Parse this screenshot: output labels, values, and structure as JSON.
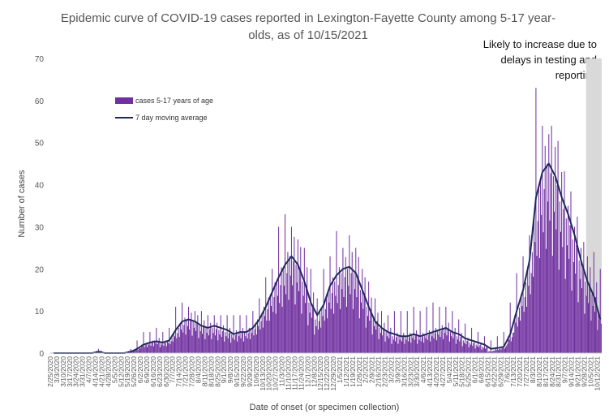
{
  "chart_data": {
    "type": "bar",
    "title": "Epidemic curve of COVID-19 cases reported in Lexington-Fayette County among 5-17 year-olds, as of 10/15/2021",
    "xlabel": "Date of onset (or specimen collection)",
    "ylabel": "Number of cases",
    "ylim": [
      0,
      70
    ],
    "yticks": [
      0,
      10,
      20,
      30,
      40,
      50,
      60,
      70
    ],
    "x_start": "2/25/2020",
    "x_end": "10/15/2021",
    "x_tick_labels": [
      "2/25/2020",
      "3/3/2020",
      "3/10/2020",
      "3/17/2020",
      "3/24/2020",
      "3/31/2020",
      "4/7/2020",
      "4/14/2020",
      "4/21/2020",
      "4/28/2020",
      "5/5/2020",
      "5/12/2020",
      "5/19/2020",
      "5/26/2020",
      "6/2/2020",
      "6/9/2020",
      "6/16/2020",
      "6/23/2020",
      "6/30/2020",
      "7/7/2020",
      "7/14/2020",
      "7/21/2020",
      "7/28/2020",
      "8/4/2020",
      "8/11/2020",
      "8/18/2020",
      "8/25/2020",
      "9/1/2020",
      "9/8/2020",
      "9/15/2020",
      "9/22/2020",
      "9/29/2020",
      "10/6/2020",
      "10/13/2020",
      "10/20/2020",
      "10/27/2020",
      "11/3/2020",
      "11/10/2020",
      "11/17/2020",
      "11/24/2020",
      "12/1/2020",
      "12/8/2020",
      "12/15/2020",
      "12/22/2020",
      "12/29/2020",
      "1/5/2021",
      "1/12/2021",
      "1/19/2021",
      "1/26/2021",
      "2/2/2021",
      "2/9/2021",
      "2/16/2021",
      "2/23/2021",
      "3/2/2021",
      "3/9/2021",
      "3/16/2021",
      "3/23/2021",
      "3/30/2021",
      "4/6/2021",
      "4/13/2021",
      "4/20/2021",
      "4/27/2021",
      "5/4/2021",
      "5/11/2021",
      "5/18/2021",
      "5/25/2021",
      "6/1/2021",
      "6/8/2021",
      "6/15/2021",
      "6/22/2021",
      "6/29/2021",
      "7/6/2021",
      "7/13/2021",
      "7/20/2021",
      "7/27/2021",
      "8/3/2021",
      "8/10/2021",
      "8/17/2021",
      "8/24/2021",
      "8/31/2021",
      "9/7/2021",
      "9/14/2021",
      "9/21/2021",
      "9/28/2021",
      "10/5/2021",
      "10/12/2021"
    ],
    "bar_series_weekly": {
      "name": "cases 5-17 years of age",
      "week_starts": [
        "2/25/2020",
        "3/3/2020",
        "3/10/2020",
        "3/17/2020",
        "3/24/2020",
        "3/31/2020",
        "4/7/2020",
        "4/14/2020",
        "4/21/2020",
        "4/28/2020",
        "5/5/2020",
        "5/12/2020",
        "5/19/2020",
        "5/26/2020",
        "6/2/2020",
        "6/9/2020",
        "6/16/2020",
        "6/23/2020",
        "6/30/2020",
        "7/7/2020",
        "7/14/2020",
        "7/21/2020",
        "7/28/2020",
        "8/4/2020",
        "8/11/2020",
        "8/18/2020",
        "8/25/2020",
        "9/1/2020",
        "9/8/2020",
        "9/15/2020",
        "9/22/2020",
        "9/29/2020",
        "10/6/2020",
        "10/13/2020",
        "10/20/2020",
        "10/27/2020",
        "11/3/2020",
        "11/10/2020",
        "11/17/2020",
        "11/24/2020",
        "12/1/2020",
        "12/8/2020",
        "12/15/2020",
        "12/22/2020",
        "12/29/2020",
        "1/5/2021",
        "1/12/2021",
        "1/19/2021",
        "1/26/2021",
        "2/2/2021",
        "2/9/2021",
        "2/16/2021",
        "2/23/2021",
        "3/2/2021",
        "3/9/2021",
        "3/16/2021",
        "3/23/2021",
        "3/30/2021",
        "4/6/2021",
        "4/13/2021",
        "4/20/2021",
        "4/27/2021",
        "5/4/2021",
        "5/11/2021",
        "5/18/2021",
        "5/25/2021",
        "6/1/2021",
        "6/8/2021",
        "6/15/2021",
        "6/22/2021",
        "6/29/2021",
        "7/6/2021",
        "7/13/2021",
        "7/20/2021",
        "7/27/2021",
        "8/3/2021",
        "8/10/2021",
        "8/17/2021",
        "8/24/2021",
        "8/31/2021",
        "9/7/2021",
        "9/14/2021",
        "9/21/2021",
        "9/28/2021",
        "10/5/2021",
        "10/12/2021"
      ],
      "typical_daily_values": [
        0,
        0,
        0,
        0,
        0,
        0,
        0,
        0.5,
        0,
        0,
        0,
        0,
        0.5,
        1,
        2,
        2.5,
        3,
        2.5,
        3,
        5,
        7,
        8,
        7.5,
        6.5,
        6,
        6,
        5.5,
        5,
        4.5,
        5,
        5,
        6,
        8,
        11,
        14,
        17,
        20,
        23,
        21,
        17,
        12,
        8,
        11,
        15,
        17,
        19,
        20,
        19,
        15,
        11,
        8,
        6,
        5,
        4,
        4,
        4,
        4.5,
        4,
        4.5,
        5,
        5.5,
        6,
        5,
        4,
        3,
        2.5,
        2,
        1.5,
        0.5,
        1,
        1.5,
        4,
        9,
        14,
        20,
        33,
        41,
        45,
        42,
        36,
        32,
        27,
        22,
        17,
        14,
        10
      ],
      "peak_values": [
        0,
        0,
        0,
        0,
        0,
        0,
        0,
        1,
        0,
        0,
        0,
        0,
        1,
        3,
        5,
        5,
        6,
        5,
        6,
        11,
        12,
        11,
        10,
        10,
        9,
        9,
        9,
        9,
        9,
        9,
        9,
        10,
        13,
        18,
        20,
        30,
        33,
        30,
        27,
        25,
        20,
        13,
        20,
        23,
        29,
        25,
        28,
        25,
        20,
        17,
        13,
        10,
        9,
        10,
        10,
        10,
        11,
        10,
        11,
        12,
        11,
        11,
        10,
        8,
        7,
        6,
        5,
        4,
        3,
        4,
        5,
        12,
        19,
        23,
        28,
        63,
        54,
        52,
        49,
        43,
        35,
        30,
        25,
        23,
        24,
        20
      ]
    },
    "line_series_weekly": {
      "name": "7 day moving average",
      "week_starts": [
        "2/25/2020",
        "3/3/2020",
        "3/10/2020",
        "3/17/2020",
        "3/24/2020",
        "3/31/2020",
        "4/7/2020",
        "4/14/2020",
        "4/21/2020",
        "4/28/2020",
        "5/5/2020",
        "5/12/2020",
        "5/19/2020",
        "5/26/2020",
        "6/2/2020",
        "6/9/2020",
        "6/16/2020",
        "6/23/2020",
        "6/30/2020",
        "7/7/2020",
        "7/14/2020",
        "7/21/2020",
        "7/28/2020",
        "8/4/2020",
        "8/11/2020",
        "8/18/2020",
        "8/25/2020",
        "9/1/2020",
        "9/8/2020",
        "9/15/2020",
        "9/22/2020",
        "9/29/2020",
        "10/6/2020",
        "10/13/2020",
        "10/20/2020",
        "10/27/2020",
        "11/3/2020",
        "11/10/2020",
        "11/17/2020",
        "11/24/2020",
        "12/1/2020",
        "12/8/2020",
        "12/15/2020",
        "12/22/2020",
        "12/29/2020",
        "1/5/2021",
        "1/12/2021",
        "1/19/2021",
        "1/26/2021",
        "2/2/2021",
        "2/9/2021",
        "2/16/2021",
        "2/23/2021",
        "3/2/2021",
        "3/9/2021",
        "3/16/2021",
        "3/23/2021",
        "3/30/2021",
        "4/6/2021",
        "4/13/2021",
        "4/20/2021",
        "4/27/2021",
        "5/4/2021",
        "5/11/2021",
        "5/18/2021",
        "5/25/2021",
        "6/1/2021",
        "6/8/2021",
        "6/15/2021",
        "6/22/2021",
        "6/29/2021",
        "7/6/2021",
        "7/13/2021",
        "7/20/2021",
        "7/27/2021",
        "8/3/2021",
        "8/10/2021",
        "8/17/2021",
        "8/24/2021",
        "8/31/2021",
        "9/7/2021",
        "9/14/2021",
        "9/21/2021",
        "9/28/2021",
        "10/5/2021",
        "10/12/2021"
      ],
      "values": [
        0,
        0,
        0,
        0,
        0,
        0,
        0,
        0.3,
        0,
        0,
        0,
        0,
        0.3,
        1,
        2,
        2.5,
        2.8,
        2.5,
        3,
        5.5,
        7.5,
        8,
        7.5,
        6.5,
        6,
        6.5,
        6,
        5.5,
        4.5,
        5,
        5,
        6,
        8,
        11,
        14.5,
        18,
        21,
        23,
        21,
        17,
        12,
        9,
        11.5,
        16,
        18.5,
        20,
        20.5,
        19,
        15,
        11,
        7.5,
        6,
        5,
        4.5,
        4,
        4,
        4.5,
        4,
        4.5,
        5,
        5.5,
        6,
        5,
        4.5,
        3.5,
        3,
        2.5,
        2,
        1,
        1.2,
        1.5,
        4.5,
        10,
        15,
        22,
        37,
        43,
        45,
        42,
        37,
        33,
        28,
        22,
        17,
        13.5,
        8
      ]
    },
    "shaded_region_label": "Likely to increase due to delays in testing and reporting",
    "legend": [
      "cases 5-17 years of age",
      "7 day moving average"
    ],
    "legend_position": "upper-left",
    "colors": {
      "bars": "#7030a0",
      "line": "#1f2a5c",
      "shade": "#d9d9d9"
    },
    "grid": false
  }
}
